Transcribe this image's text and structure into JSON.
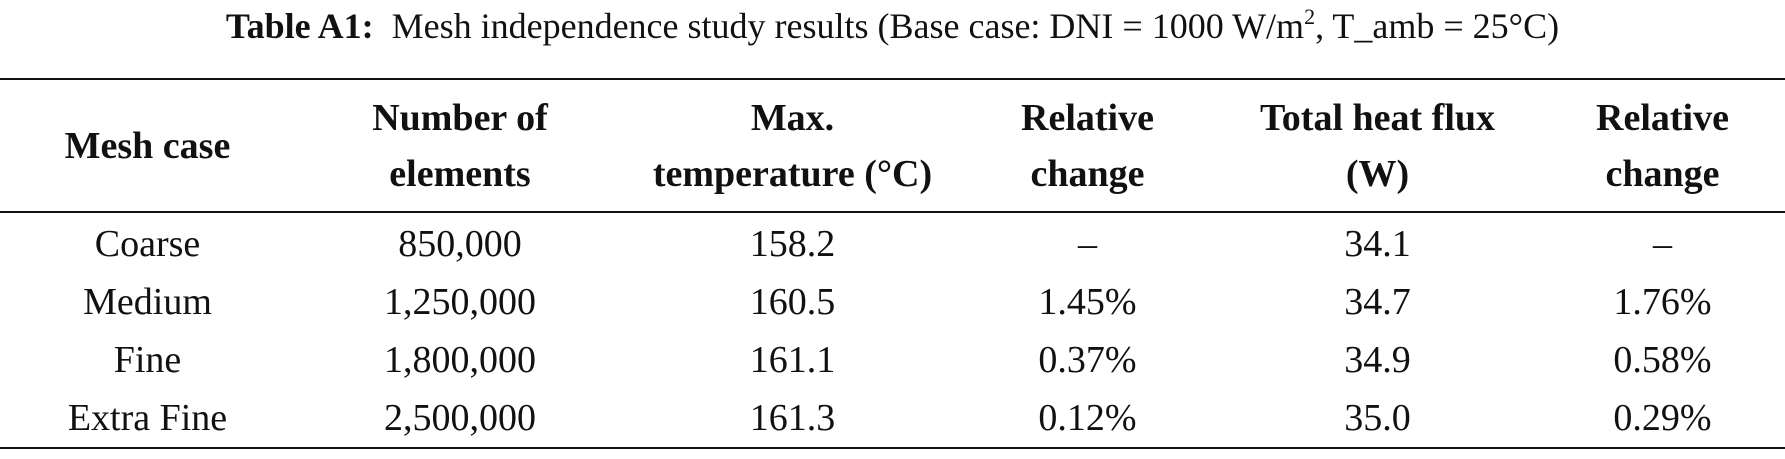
{
  "caption": {
    "label": "Table A1:",
    "text_before_sup": "Mesh independence study results (Base case: DNI = 1000 W/m",
    "sup": "2",
    "text_after_sup": ", T_amb = 25°C)"
  },
  "table": {
    "headers": [
      {
        "line1": "Mesh case",
        "line2": ""
      },
      {
        "line1": "Number of",
        "line2": "elements"
      },
      {
        "line1": "Max.",
        "line2": "temperature (°C)"
      },
      {
        "line1": "Relative",
        "line2": "change"
      },
      {
        "line1": "Total heat flux",
        "line2": "(W)"
      },
      {
        "line1": "Relative",
        "line2": "change"
      }
    ],
    "rows": [
      [
        "Coarse",
        "850,000",
        "158.2",
        "–",
        "34.1",
        "–"
      ],
      [
        "Medium",
        "1,250,000",
        "160.5",
        "1.45%",
        "34.7",
        "1.76%"
      ],
      [
        "Fine",
        "1,800,000",
        "161.1",
        "0.37%",
        "34.9",
        "0.58%"
      ],
      [
        "Extra Fine",
        "2,500,000",
        "161.3",
        "0.12%",
        "35.0",
        "0.29%"
      ]
    ]
  }
}
